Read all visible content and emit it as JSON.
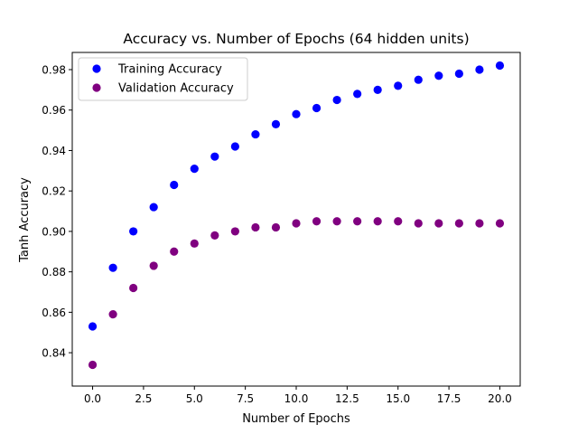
{
  "chart_data": {
    "type": "scatter",
    "title": "Accuracy vs. Number of Epochs (64 hidden units)",
    "xlabel": "Number of Epochs",
    "ylabel": "Tanh Accuracy",
    "xlim": [
      -1,
      21
    ],
    "ylim": [
      0.8235,
      0.9885
    ],
    "xticks": [
      0,
      2.5,
      5,
      7.5,
      10,
      12.5,
      15,
      17.5,
      20
    ],
    "xtick_labels": [
      "0.0",
      "2.5",
      "5.0",
      "7.5",
      "10.0",
      "12.5",
      "15.0",
      "17.5",
      "20.0"
    ],
    "yticks": [
      0.84,
      0.86,
      0.88,
      0.9,
      0.92,
      0.94,
      0.96,
      0.98
    ],
    "ytick_labels": [
      "0.84",
      "0.86",
      "0.88",
      "0.90",
      "0.92",
      "0.94",
      "0.96",
      "0.98"
    ],
    "grid": false,
    "legend_position": "top-left",
    "x": [
      0,
      1,
      2,
      3,
      4,
      5,
      6,
      7,
      8,
      9,
      10,
      11,
      12,
      13,
      14,
      15,
      16,
      17,
      18,
      19,
      20
    ],
    "series": [
      {
        "name": "Training Accuracy",
        "color": "#0000ff",
        "values": [
          0.853,
          0.882,
          0.9,
          0.912,
          0.923,
          0.931,
          0.937,
          0.942,
          0.948,
          0.953,
          0.958,
          0.961,
          0.965,
          0.968,
          0.97,
          0.972,
          0.975,
          0.977,
          0.978,
          0.98,
          0.982
        ]
      },
      {
        "name": "Validation Accuracy",
        "color": "#800080",
        "values": [
          0.834,
          0.859,
          0.872,
          0.883,
          0.89,
          0.894,
          0.898,
          0.9,
          0.902,
          0.902,
          0.904,
          0.905,
          0.905,
          0.905,
          0.905,
          0.905,
          0.904,
          0.904,
          0.904,
          0.904,
          0.904
        ]
      }
    ]
  }
}
